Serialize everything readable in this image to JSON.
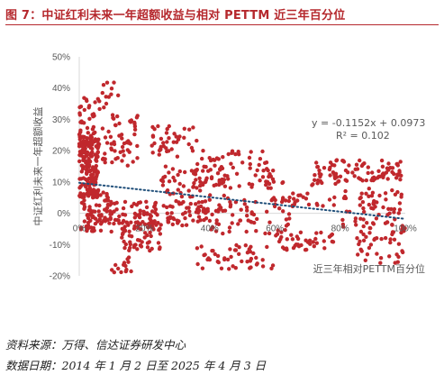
{
  "title": "图 7：中证红利未来一年超额收益与相对 PETTM 近三年百分位",
  "source": "资料来源：万得、信达证券研发中心",
  "date_range": "数据日期：2014 年 1 月 2 日至 2025 年 4 月 3 日",
  "chart_data": {
    "type": "scatter",
    "title": "",
    "xlabel": "近三年相对PETTM百分位",
    "ylabel": "中证红利未来一年超额收益",
    "xlim": [
      0,
      1
    ],
    "ylim": [
      -0.2,
      0.5
    ],
    "x_ticks": [
      "0%",
      "20%",
      "40%",
      "60%",
      "80%",
      "100%"
    ],
    "y_ticks": [
      "-20%",
      "-10%",
      "0%",
      "10%",
      "20%",
      "30%",
      "40%",
      "50%"
    ],
    "trendline": {
      "slope": -0.1152,
      "intercept": 0.0973,
      "equation": "y = -0.1152x + 0.0973",
      "r2": "R² = 0.102"
    },
    "point_color": "#c0282d",
    "trend_color": "#1f4e79",
    "clusters": [
      {
        "x": [
          0.0,
          0.06
        ],
        "y": [
          0.05,
          0.25
        ],
        "n": 170
      },
      {
        "x": [
          0.0,
          0.05
        ],
        "y": [
          0.24,
          0.38
        ],
        "n": 30
      },
      {
        "x": [
          0.0,
          0.1
        ],
        "y": [
          -0.06,
          0.07
        ],
        "n": 90
      },
      {
        "x": [
          0.05,
          0.18
        ],
        "y": [
          0.15,
          0.32
        ],
        "n": 60
      },
      {
        "x": [
          0.05,
          0.12
        ],
        "y": [
          0.33,
          0.42
        ],
        "n": 14
      },
      {
        "x": [
          0.08,
          0.4
        ],
        "y": [
          -0.04,
          0.04
        ],
        "n": 120
      },
      {
        "x": [
          0.12,
          0.25
        ],
        "y": [
          -0.12,
          -0.02
        ],
        "n": 60
      },
      {
        "x": [
          0.1,
          0.16
        ],
        "y": [
          -0.19,
          -0.14
        ],
        "n": 14
      },
      {
        "x": [
          0.22,
          0.36
        ],
        "y": [
          0.18,
          0.28
        ],
        "n": 40
      },
      {
        "x": [
          0.35,
          0.6
        ],
        "y": [
          0.08,
          0.2
        ],
        "n": 80
      },
      {
        "x": [
          0.25,
          0.45
        ],
        "y": [
          0.05,
          0.15
        ],
        "n": 50
      },
      {
        "x": [
          0.36,
          0.6
        ],
        "y": [
          -0.18,
          -0.1
        ],
        "n": 50
      },
      {
        "x": [
          0.4,
          0.65
        ],
        "y": [
          -0.07,
          0.05
        ],
        "n": 70
      },
      {
        "x": [
          0.6,
          0.78
        ],
        "y": [
          -0.12,
          -0.06
        ],
        "n": 40
      },
      {
        "x": [
          0.62,
          0.8
        ],
        "y": [
          0.02,
          0.1
        ],
        "n": 30
      },
      {
        "x": [
          0.72,
          1.0
        ],
        "y": [
          0.1,
          0.17
        ],
        "n": 90
      },
      {
        "x": [
          0.8,
          1.0
        ],
        "y": [
          -0.05,
          0.08
        ],
        "n": 70
      },
      {
        "x": [
          0.85,
          1.0
        ],
        "y": [
          -0.16,
          -0.05
        ],
        "n": 40
      }
    ]
  }
}
